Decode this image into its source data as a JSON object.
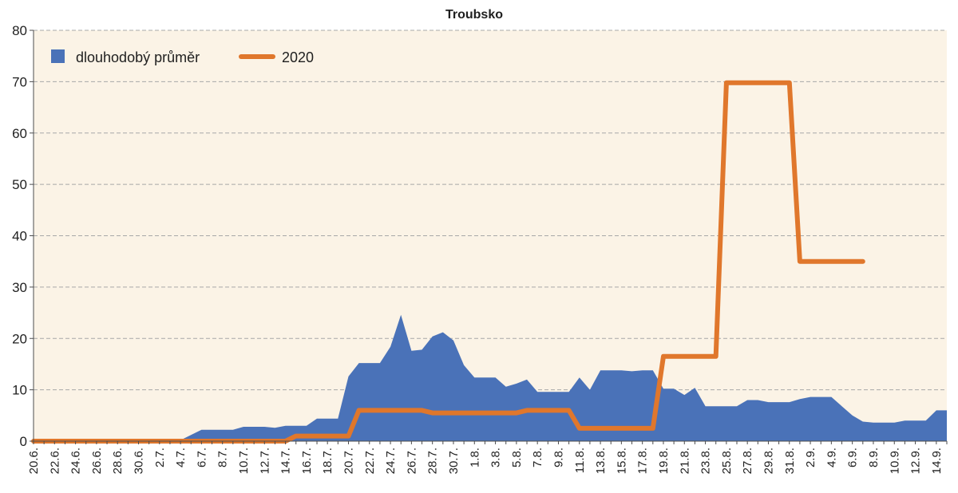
{
  "chart_data": {
    "type": "area",
    "title": "Troubsko",
    "xlabel": "",
    "ylabel": "",
    "ylim": [
      0,
      80
    ],
    "yticks": [
      0,
      10,
      20,
      30,
      40,
      50,
      60,
      70,
      80
    ],
    "grid": true,
    "legend_position": "top-left",
    "background": "#fbf3e6",
    "x_start_date": "2020-06-20",
    "x_tick_labels": [
      "20.6.",
      "22.6.",
      "24.6.",
      "26.6.",
      "28.6.",
      "30.6.",
      "2.7.",
      "4.7.",
      "6.7.",
      "8.7.",
      "10.7.",
      "12.7.",
      "14.7.",
      "16.7.",
      "18.7.",
      "20.7.",
      "22.7.",
      "24.7.",
      "26.7.",
      "28.7.",
      "30.7.",
      "1.8.",
      "3.8.",
      "5.8.",
      "7.8.",
      "9.8.",
      "11.8.",
      "13.8.",
      "15.8.",
      "17.8.",
      "19.8.",
      "21.8.",
      "23.8.",
      "25.8.",
      "27.8.",
      "29.8.",
      "31.8.",
      "2.9.",
      "4.9.",
      "6.9.",
      "8.9.",
      "10.9.",
      "12.9.",
      "14.9."
    ],
    "series": [
      {
        "name": "dlouhodobý průměr",
        "kind": "area",
        "color": "#4a72b8",
        "x": [
          "2020-06-20",
          "2020-06-21",
          "2020-06-22",
          "2020-06-23",
          "2020-06-24",
          "2020-06-25",
          "2020-06-26",
          "2020-06-27",
          "2020-06-28",
          "2020-06-29",
          "2020-06-30",
          "2020-07-01",
          "2020-07-02",
          "2020-07-03",
          "2020-07-04",
          "2020-07-05",
          "2020-07-06",
          "2020-07-07",
          "2020-07-08",
          "2020-07-09",
          "2020-07-10",
          "2020-07-11",
          "2020-07-12",
          "2020-07-13",
          "2020-07-14",
          "2020-07-15",
          "2020-07-16",
          "2020-07-17",
          "2020-07-18",
          "2020-07-19",
          "2020-07-20",
          "2020-07-21",
          "2020-07-22",
          "2020-07-23",
          "2020-07-24",
          "2020-07-25",
          "2020-07-26",
          "2020-07-27",
          "2020-07-28",
          "2020-07-29",
          "2020-07-30",
          "2020-07-31",
          "2020-08-01",
          "2020-08-02",
          "2020-08-03",
          "2020-08-04",
          "2020-08-05",
          "2020-08-06",
          "2020-08-07",
          "2020-08-08",
          "2020-08-09",
          "2020-08-10",
          "2020-08-11",
          "2020-08-12",
          "2020-08-13",
          "2020-08-14",
          "2020-08-15",
          "2020-08-16",
          "2020-08-17",
          "2020-08-18",
          "2020-08-19",
          "2020-08-20",
          "2020-08-21",
          "2020-08-22",
          "2020-08-23",
          "2020-08-24",
          "2020-08-25",
          "2020-08-26",
          "2020-08-27",
          "2020-08-28",
          "2020-08-29",
          "2020-08-30",
          "2020-08-31",
          "2020-09-01",
          "2020-09-02",
          "2020-09-03",
          "2020-09-04",
          "2020-09-05",
          "2020-09-06",
          "2020-09-07",
          "2020-09-08",
          "2020-09-09",
          "2020-09-10",
          "2020-09-11",
          "2020-09-12",
          "2020-09-13",
          "2020-09-14",
          "2020-09-15"
        ],
        "values": [
          0.1,
          0.1,
          0.1,
          0.1,
          0.1,
          0.1,
          0.1,
          0.1,
          0.1,
          0.1,
          0.1,
          0.1,
          0.1,
          0.2,
          0.2,
          1.2,
          2.2,
          2.2,
          2.2,
          2.2,
          2.8,
          2.8,
          2.8,
          2.6,
          3.0,
          3.0,
          3.0,
          4.4,
          4.4,
          4.4,
          12.6,
          15.2,
          15.2,
          15.2,
          18.4,
          24.6,
          17.6,
          17.8,
          20.4,
          21.2,
          19.6,
          14.8,
          12.4,
          12.4,
          12.4,
          10.6,
          11.2,
          12.0,
          9.6,
          9.6,
          9.6,
          9.6,
          12.4,
          10.0,
          13.8,
          13.8,
          13.8,
          13.6,
          13.8,
          13.8,
          10.2,
          10.2,
          9.0,
          10.4,
          6.8,
          6.8,
          6.8,
          6.8,
          8.0,
          8.0,
          7.6,
          7.6,
          7.6,
          8.2,
          8.6,
          8.6,
          8.6,
          6.8,
          5.0,
          3.8,
          3.6,
          3.6,
          3.6,
          4.0,
          4.0,
          4.0,
          6.0,
          6.0
        ]
      },
      {
        "name": "2020",
        "kind": "line",
        "color": "#e0772c",
        "x": [
          "2020-06-20",
          "2020-07-14",
          "2020-07-15",
          "2020-07-20",
          "2020-07-21",
          "2020-07-27",
          "2020-07-28",
          "2020-08-05",
          "2020-08-06",
          "2020-08-10",
          "2020-08-11",
          "2020-08-18",
          "2020-08-19",
          "2020-08-24",
          "2020-08-25",
          "2020-08-31",
          "2020-09-01",
          "2020-09-07"
        ],
        "values": [
          0,
          0,
          1,
          1,
          6,
          6,
          5.5,
          5.5,
          6,
          6,
          2.5,
          2.5,
          16.5,
          16.5,
          69.8,
          69.8,
          35,
          35
        ]
      }
    ]
  }
}
